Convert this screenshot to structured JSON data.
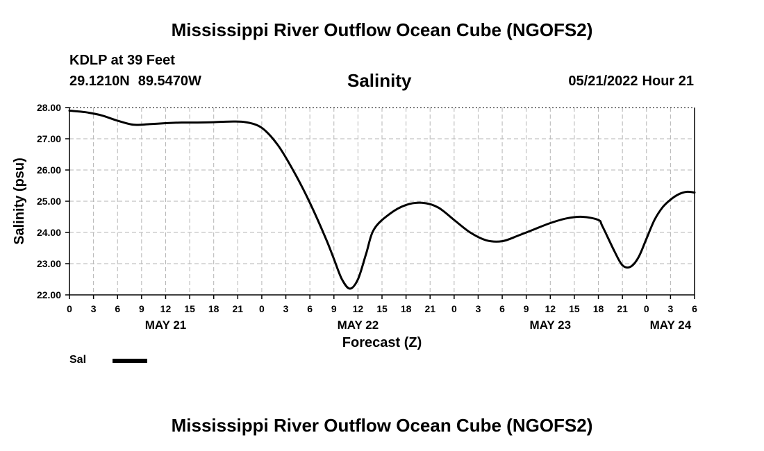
{
  "header": {
    "title_top": "Mississippi River Outflow Ocean Cube (NGOFS2)",
    "title_bottom": "Mississippi River Outflow Ocean Cube (NGOFS2)",
    "station": "KDLP at 39 Feet",
    "lat": "29.1210N",
    "lon": "89.5470W",
    "date": "05/21/2022",
    "hour": "Hour 21"
  },
  "chart_data": {
    "type": "line",
    "title": "Salinity",
    "xlabel": "Forecast (Z)",
    "ylabel": "Salinity (psu)",
    "ylim": [
      22.0,
      28.0
    ],
    "xlim_hours": [
      0,
      78
    ],
    "grid": true,
    "y_ticks": [
      "22.00",
      "23.00",
      "24.00",
      "25.00",
      "26.00",
      "27.00",
      "28.00"
    ],
    "x_tick_labels": [
      "0",
      "3",
      "6",
      "9",
      "12",
      "15",
      "18",
      "21",
      "0",
      "3",
      "6",
      "9",
      "12",
      "15",
      "18",
      "21",
      "0",
      "3",
      "6",
      "9",
      "12",
      "15",
      "18",
      "21",
      "0",
      "3",
      "6"
    ],
    "date_labels": [
      {
        "label": "MAY 21",
        "hour": 12
      },
      {
        "label": "MAY 22",
        "hour": 36
      },
      {
        "label": "MAY 23",
        "hour": 60
      },
      {
        "label": "MAY 24",
        "hour": 75
      }
    ],
    "series": [
      {
        "name": "Sal",
        "color": "#000000",
        "x_hours": [
          0,
          2,
          4,
          6,
          8,
          10,
          12,
          14,
          16,
          18,
          20,
          22,
          24,
          26,
          28,
          30,
          32,
          33,
          34,
          35,
          36,
          37,
          38,
          40,
          42,
          44,
          46,
          48,
          50,
          52,
          54,
          56,
          58,
          60,
          62,
          64,
          66,
          66.5,
          68,
          69,
          70,
          71,
          72,
          73,
          74,
          75,
          76,
          77,
          78
        ],
        "values": [
          27.9,
          27.85,
          27.75,
          27.58,
          27.45,
          27.47,
          27.5,
          27.52,
          27.52,
          27.53,
          27.55,
          27.53,
          27.35,
          26.8,
          25.95,
          24.95,
          23.8,
          23.15,
          22.5,
          22.2,
          22.5,
          23.3,
          24.1,
          24.6,
          24.88,
          24.95,
          24.8,
          24.4,
          24.0,
          23.75,
          23.72,
          23.9,
          24.1,
          24.3,
          24.45,
          24.5,
          24.4,
          24.2,
          23.4,
          22.95,
          22.9,
          23.2,
          23.8,
          24.4,
          24.8,
          25.05,
          25.22,
          25.3,
          25.28
        ]
      }
    ]
  },
  "legend": {
    "items": [
      {
        "label": "Sal",
        "color": "#000000"
      }
    ]
  }
}
